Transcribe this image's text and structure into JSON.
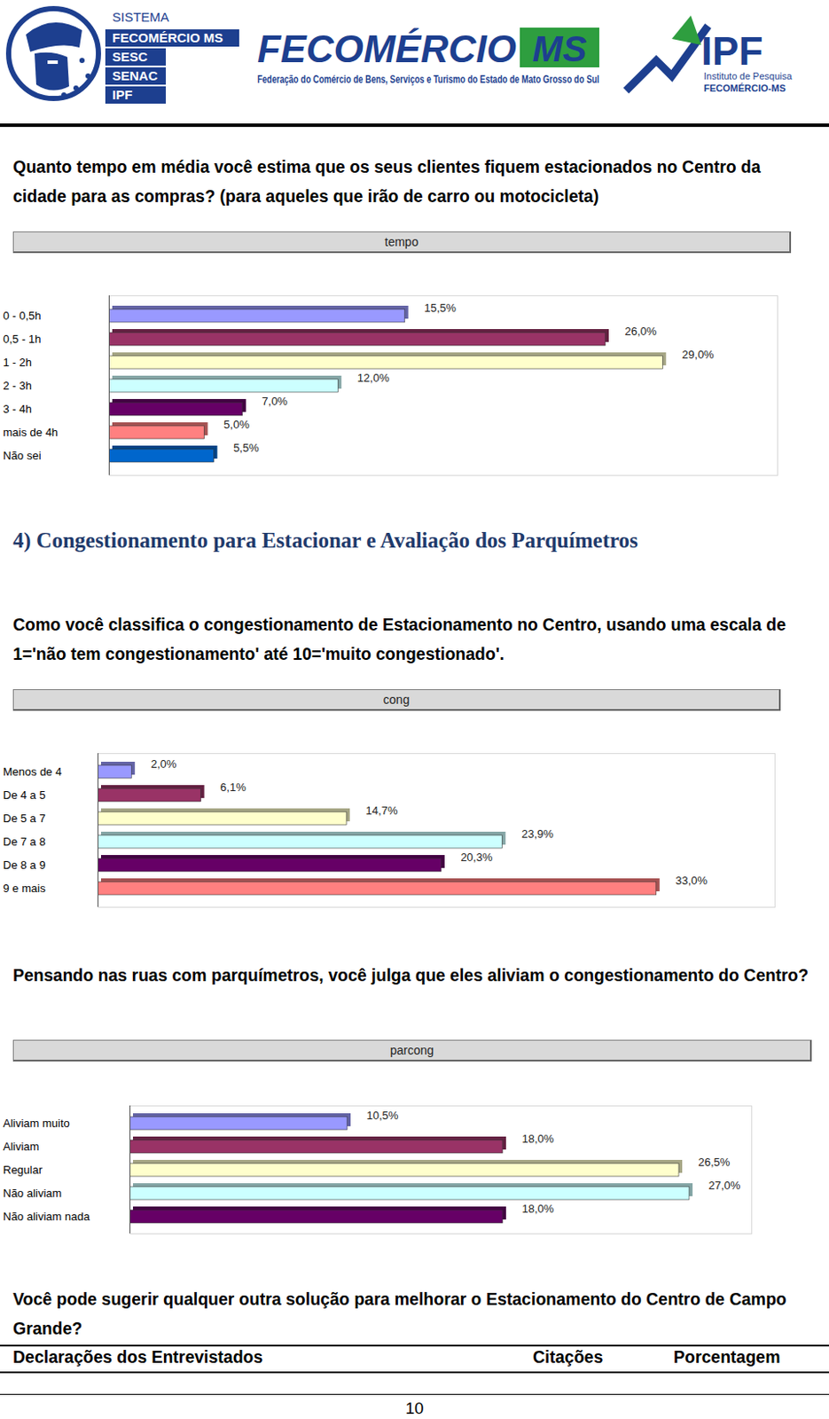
{
  "header": {
    "logo1": [
      "SISTEMA",
      "FECOMÉRCIO MS",
      "SESC",
      "SENAC",
      "IPF"
    ],
    "logo2": {
      "title": "FECOMÉRCIO",
      "badge": "MS",
      "subtitle": "Federação do Comércio de Bens, Serviços e Turismo do Estado de Mato Grosso do Sul"
    },
    "logo3": {
      "title": "IPF",
      "lines": [
        "Instituto de Pesquisa",
        "FECOMÉRCIO-MS"
      ]
    }
  },
  "question1": "Quanto tempo em média você estima que os seus clientes fiquem estacionados no Centro da cidade para as compras? (para aqueles que irão de carro ou motocicleta)",
  "section_heading": "4) Congestionamento para Estacionar e Avaliação dos Parquímetros",
  "question2": "Como você classifica o congestionamento de Estacionamento no Centro, usando uma escala de 1='não tem congestionamento' até 10='muito congestionado'.",
  "question3": "Pensando nas ruas com parquímetros, você julga que eles aliviam o congestionamento do Centro?",
  "question4": "Você pode sugerir qualquer outra solução para melhorar o Estacionamento do Centro de Campo Grande?",
  "table": {
    "columns": [
      "Declarações dos Entrevistados",
      "Citações",
      "Porcentagem"
    ]
  },
  "page_number": 10,
  "chart_data": [
    {
      "type": "bar",
      "orientation": "horizontal",
      "title": "tempo",
      "categories": [
        "0 - 0,5h",
        "0,5 - 1h",
        "1 - 2h",
        "2 - 3h",
        "3 - 4h",
        "mais de 4h",
        "Não sei"
      ],
      "values": [
        15.5,
        26.0,
        29.0,
        12.0,
        7.0,
        5.0,
        5.5
      ],
      "value_labels": [
        "15,5%",
        "26,0%",
        "29,0%",
        "12,0%",
        "7,0%",
        "5,0%",
        "5,5%"
      ],
      "colors": [
        "#9999ff",
        "#993366",
        "#ffffcc",
        "#ccffff",
        "#660066",
        "#ff8080",
        "#0066cc"
      ],
      "xlim": [
        0,
        35
      ],
      "data_labels": true,
      "tick_labels": "y",
      "grid": false
    },
    {
      "type": "bar",
      "orientation": "horizontal",
      "title": "cong",
      "categories": [
        "Menos de 4",
        "De 4 a 5",
        "De 5 a 7",
        "De 7 a 8",
        "De 8 a 9",
        "9 e mais"
      ],
      "values": [
        2.0,
        6.1,
        14.7,
        23.9,
        20.3,
        33.0
      ],
      "value_labels": [
        "2,0%",
        "6,1%",
        "14,7%",
        "23,9%",
        "20,3%",
        "33,0%"
      ],
      "colors": [
        "#9999ff",
        "#993366",
        "#ffffcc",
        "#ccffff",
        "#660066",
        "#ff8080"
      ],
      "xlim": [
        0,
        40
      ],
      "data_labels": true,
      "tick_labels": "y",
      "grid": false
    },
    {
      "type": "bar",
      "orientation": "horizontal",
      "title": "parcong",
      "categories": [
        "Aliviam muito",
        "Aliviam",
        "Regular",
        "Não aliviam",
        "Não aliviam nada"
      ],
      "values": [
        10.5,
        18.0,
        26.5,
        27.0,
        18.0
      ],
      "value_labels": [
        "10,5%",
        "18,0%",
        "26,5%",
        "27,0%",
        "18,0%"
      ],
      "colors": [
        "#9999ff",
        "#993366",
        "#ffffcc",
        "#ccffff",
        "#660066"
      ],
      "xlim": [
        0,
        30
      ],
      "data_labels": true,
      "tick_labels": "y",
      "grid": false
    }
  ]
}
